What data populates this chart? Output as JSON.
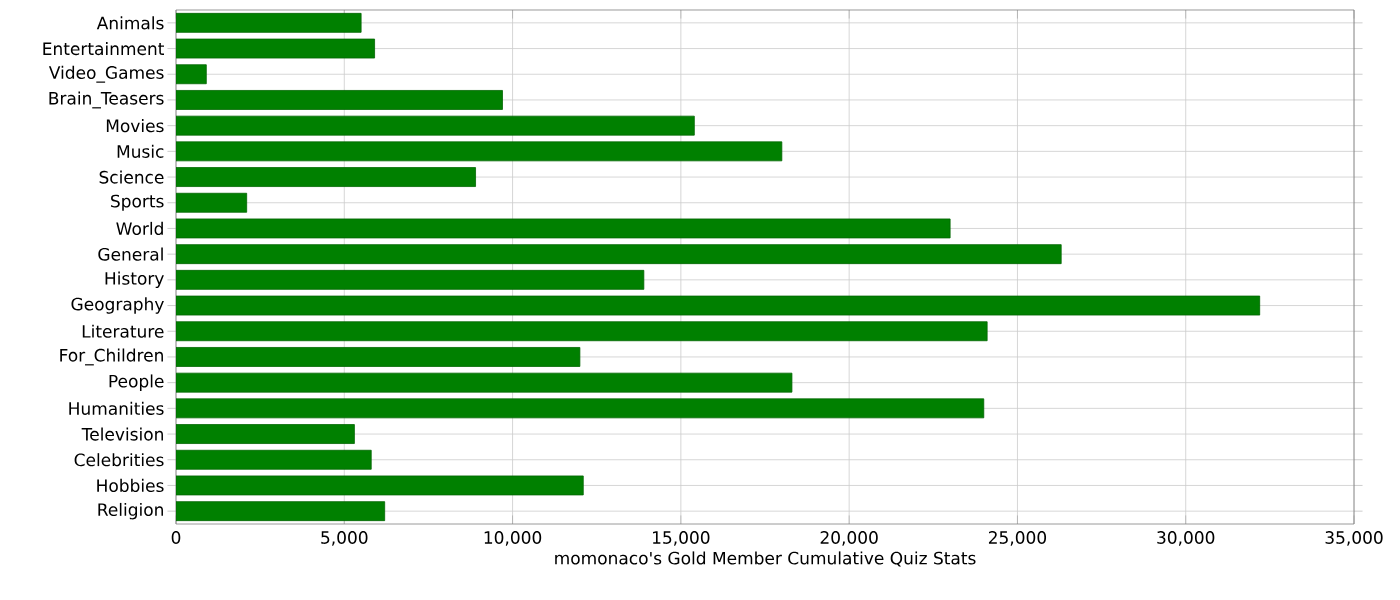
{
  "chart_data": {
    "type": "bar",
    "orientation": "horizontal",
    "xlabel": "momonaco's Gold Member Cumulative Quiz Stats",
    "categories": [
      "Animals",
      "Entertainment",
      "Video_Games",
      "Brain_Teasers",
      "Movies",
      "Music",
      "Science",
      "Sports",
      "World",
      "General",
      "History",
      "Geography",
      "Literature",
      "For_Children",
      "People",
      "Humanities",
      "Television",
      "Celebrities",
      "Hobbies",
      "Religion"
    ],
    "values": [
      5500,
      5900,
      900,
      9700,
      15400,
      18000,
      8900,
      2100,
      23000,
      26300,
      13900,
      32200,
      24100,
      12000,
      18300,
      24000,
      5300,
      5800,
      12100,
      6200
    ],
    "color": "#008000",
    "xlim": [
      0,
      35000
    ],
    "xticks": [
      {
        "value": 0,
        "label": "0"
      },
      {
        "value": 5000,
        "label": "5,000"
      },
      {
        "value": 10000,
        "label": "10,000"
      },
      {
        "value": 15000,
        "label": "15,000"
      },
      {
        "value": 20000,
        "label": "20,000"
      },
      {
        "value": 25000,
        "label": "25,000"
      },
      {
        "value": 30000,
        "label": "30,000"
      },
      {
        "value": 35000,
        "label": "35,000"
      }
    ],
    "grid": true
  }
}
